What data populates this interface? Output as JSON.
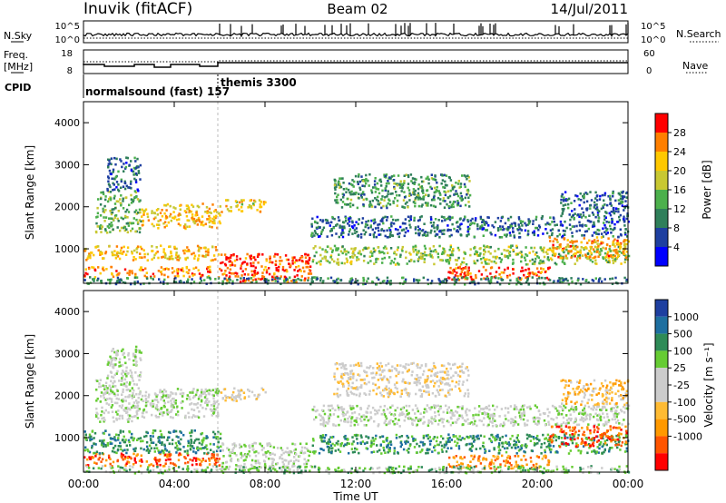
{
  "header": {
    "station": "Inuvik (fitACF)",
    "beam": "Beam 02",
    "date": "14/Jul/2011"
  },
  "noise_panel": {
    "left_label": "N.Sky",
    "right_label": "N.Search",
    "left_ticks": [
      "10^5",
      "10^0"
    ],
    "right_ticks": [
      "10^5",
      "10^0"
    ]
  },
  "freq_panel": {
    "left_label_1": "Freq.",
    "left_label_2": "[MHz]",
    "right_label": "Nave",
    "left_ticks": [
      "18",
      "8"
    ],
    "right_ticks": [
      "60",
      "0"
    ]
  },
  "cpid_panel": {
    "label": "CPID",
    "modes": [
      {
        "name": "normalsound (fast) 157",
        "start_hour": 0,
        "end_hour": 6
      },
      {
        "name": "themis 3300",
        "start_hour": 6,
        "end_hour": 24
      }
    ]
  },
  "colors": {
    "power": [
      "#0000ff",
      "#1e3fa0",
      "#2f7f5a",
      "#4cb04c",
      "#c8c832",
      "#ffc800",
      "#ff7f00",
      "#ff0000"
    ],
    "velocity": [
      "#ff0000",
      "#ff5500",
      "#ff9900",
      "#ffbb33",
      "#cccccc",
      "#cccccc",
      "#66cc33",
      "#2e8b57",
      "#1e6fa0",
      "#1e3fa0"
    ]
  },
  "chart_data": [
    {
      "type": "heatmap",
      "name": "power",
      "ylabel": "Slant Range [km]",
      "xlabel": "",
      "x_ticks": [
        "00:00",
        "04:00",
        "08:00",
        "12:00",
        "16:00",
        "20:00",
        "00:00"
      ],
      "xlim_hours": [
        0,
        24
      ],
      "ylim_km": [
        180,
        4500
      ],
      "y_ticks": [
        1000,
        2000,
        3000,
        4000
      ],
      "colorbar": {
        "label": "Power [dB]",
        "ticks": [
          "4",
          "8",
          "12",
          "16",
          "20",
          "24",
          "28"
        ],
        "range": [
          0,
          30
        ]
      },
      "scatter_regions": [
        {
          "t0": 0.0,
          "t1": 6.0,
          "r0": 350,
          "r1": 600,
          "level": 25
        },
        {
          "t0": 0.0,
          "t1": 6.0,
          "r0": 750,
          "r1": 1100,
          "level": 22
        },
        {
          "t0": 0.5,
          "t1": 2.5,
          "r0": 1400,
          "r1": 2400,
          "level": 14
        },
        {
          "t0": 2.5,
          "t1": 3.5,
          "r0": 1500,
          "r1": 2000,
          "level": 22
        },
        {
          "t0": 3.5,
          "t1": 6.0,
          "r0": 1500,
          "r1": 2100,
          "level": 22
        },
        {
          "t0": 1.0,
          "t1": 2.5,
          "r0": 2400,
          "r1": 3200,
          "level": 8
        },
        {
          "t0": 6.0,
          "t1": 10.0,
          "r0": 220,
          "r1": 900,
          "level": 28
        },
        {
          "t0": 6.0,
          "t1": 8.0,
          "r0": 1900,
          "r1": 2200,
          "level": 20
        },
        {
          "t0": 10.0,
          "t1": 24.0,
          "r0": 650,
          "r1": 1100,
          "level": 16
        },
        {
          "t0": 10.0,
          "t1": 24.0,
          "r0": 1300,
          "r1": 1800,
          "level": 8
        },
        {
          "t0": 11.0,
          "t1": 17.0,
          "r0": 2000,
          "r1": 2800,
          "level": 12
        },
        {
          "t0": 16.0,
          "t1": 20.5,
          "r0": 280,
          "r1": 600,
          "level": 28
        },
        {
          "t0": 20.5,
          "t1": 24.0,
          "r0": 800,
          "r1": 1300,
          "level": 24
        },
        {
          "t0": 21.0,
          "t1": 24.0,
          "r0": 1800,
          "r1": 2400,
          "level": 8
        },
        {
          "t0": 0.0,
          "t1": 24.0,
          "r0": 180,
          "r1": 350,
          "level": 10
        }
      ]
    },
    {
      "type": "heatmap",
      "name": "velocity",
      "ylabel": "Slant Range [km]",
      "xlabel": "Time UT",
      "x_ticks": [
        "00:00",
        "04:00",
        "08:00",
        "12:00",
        "16:00",
        "20:00",
        "00:00"
      ],
      "xlim_hours": [
        0,
        24
      ],
      "ylim_km": [
        180,
        4500
      ],
      "y_ticks": [
        1000,
        2000,
        3000,
        4000
      ],
      "colorbar": {
        "label": "Velocity [m s⁻¹]",
        "ticks": [
          "1000",
          "500",
          "100",
          "25",
          "-25",
          "-100",
          "-500",
          "-1000"
        ],
        "range": [
          -1000,
          1000
        ]
      },
      "scatter_regions": [
        {
          "t0": 0.0,
          "t1": 6.0,
          "r0": 350,
          "r1": 650,
          "level": 1
        },
        {
          "t0": 0.0,
          "t1": 6.0,
          "r0": 650,
          "r1": 1200,
          "level": 7
        },
        {
          "t0": 0.5,
          "t1": 2.5,
          "r0": 1400,
          "r1": 2400,
          "level": 5
        },
        {
          "t0": 2.5,
          "t1": 6.0,
          "r0": 1500,
          "r1": 2200,
          "level": 5
        },
        {
          "t0": 1.0,
          "t1": 2.5,
          "r0": 2400,
          "r1": 3200,
          "level": 5
        },
        {
          "t0": 6.0,
          "t1": 10.0,
          "r0": 220,
          "r1": 900,
          "level": 5
        },
        {
          "t0": 6.0,
          "t1": 8.0,
          "r0": 1900,
          "r1": 2200,
          "level": 4
        },
        {
          "t0": 10.0,
          "t1": 24.0,
          "r0": 650,
          "r1": 1100,
          "level": 7
        },
        {
          "t0": 10.0,
          "t1": 24.0,
          "r0": 1300,
          "r1": 1800,
          "level": 5
        },
        {
          "t0": 11.0,
          "t1": 17.0,
          "r0": 2000,
          "r1": 2800,
          "level": 4
        },
        {
          "t0": 16.0,
          "t1": 20.5,
          "r0": 280,
          "r1": 600,
          "level": 2
        },
        {
          "t0": 20.5,
          "t1": 24.0,
          "r0": 800,
          "r1": 1300,
          "level": 1
        },
        {
          "t0": 21.0,
          "t1": 24.0,
          "r0": 1800,
          "r1": 2400,
          "level": 3
        },
        {
          "t0": 0.0,
          "t1": 24.0,
          "r0": 180,
          "r1": 350,
          "level": 6
        }
      ]
    }
  ]
}
